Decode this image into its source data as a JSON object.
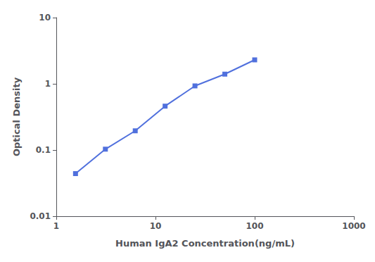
{
  "chart_data": {
    "type": "line",
    "x": [
      1.5625,
      3.125,
      6.25,
      12.5,
      25.0,
      50.0,
      100.0
    ],
    "values": [
      0.044,
      0.103,
      0.195,
      0.46,
      0.93,
      1.4,
      2.3
    ],
    "xlabel": "Human IgA2 Concentration(ng/mL)",
    "ylabel": "Optical Density",
    "xlim": [
      1.0,
      1000.0
    ],
    "ylim": [
      0.01,
      10.0
    ],
    "xticks": [
      1,
      10,
      100,
      1000
    ],
    "yticks": [
      0.01,
      0.1,
      1,
      10
    ],
    "log": true,
    "grid": false,
    "marker": "square"
  }
}
